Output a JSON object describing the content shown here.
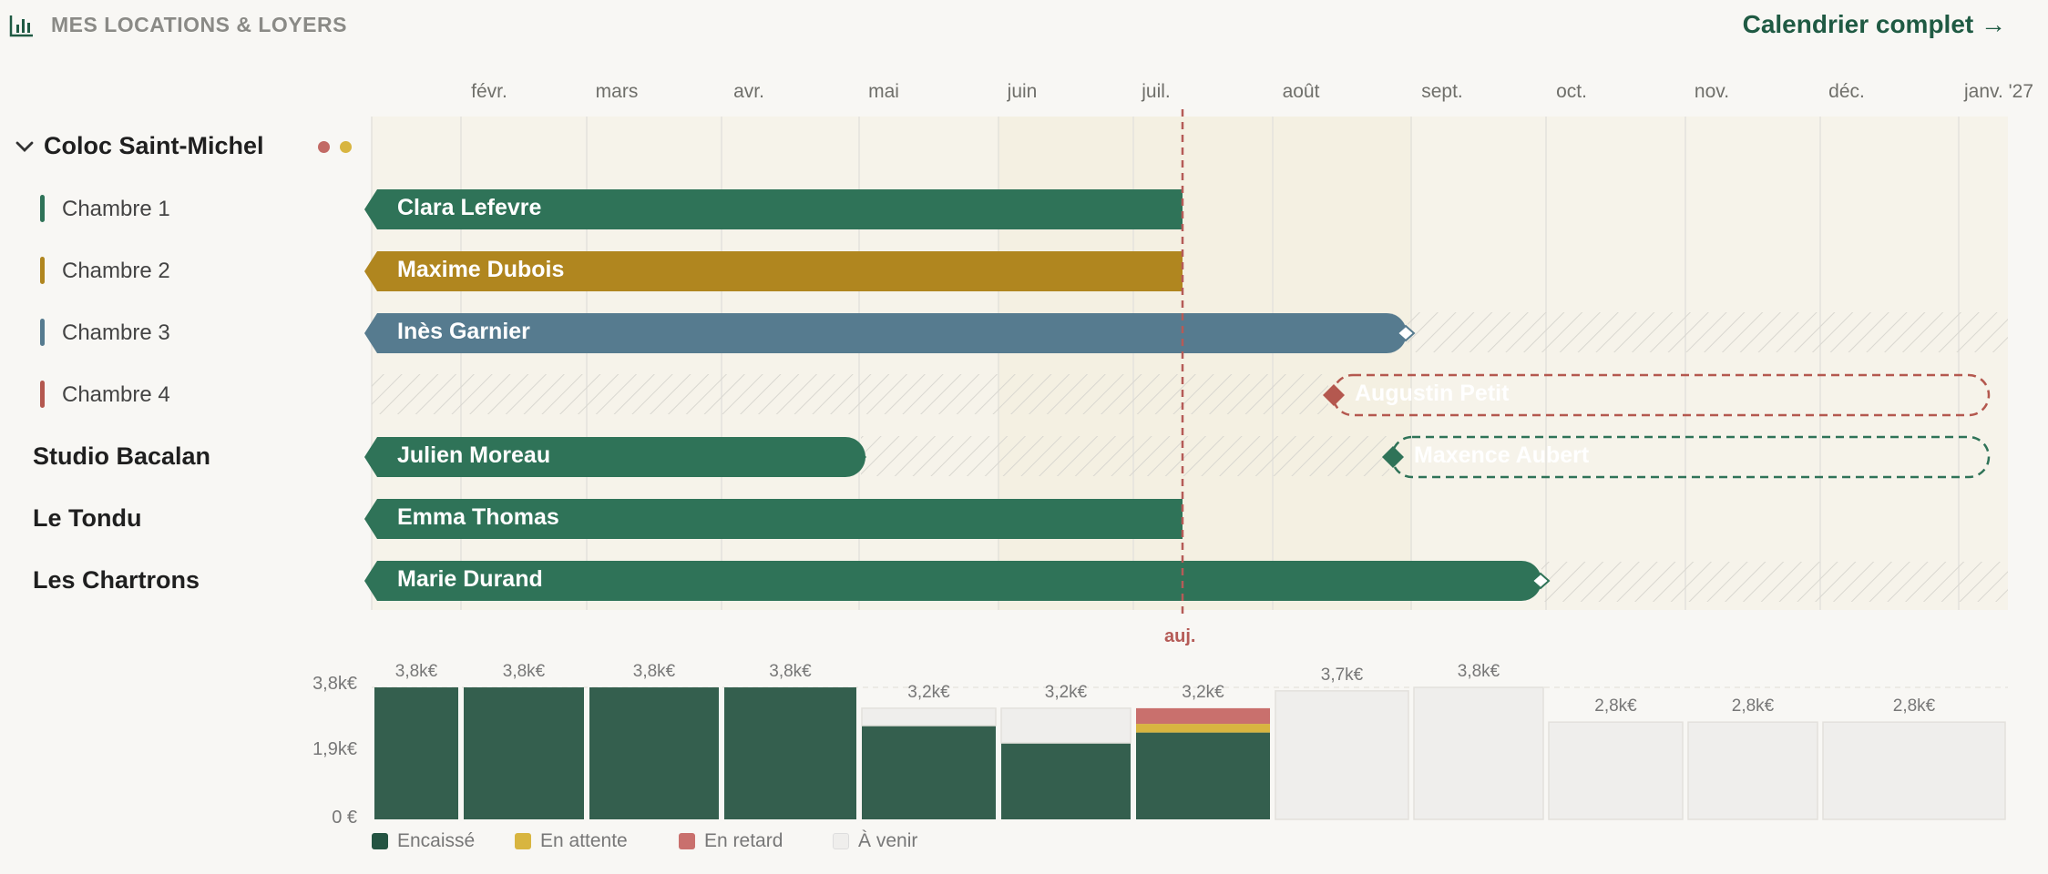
{
  "header": {
    "title": "MES LOCATIONS & LOYERS",
    "calendar_link": "Calendrier complet →"
  },
  "months": [
    "févr.",
    "mars",
    "avr.",
    "mai",
    "juin",
    "juil.",
    "août",
    "sept.",
    "oct.",
    "nov.",
    "déc.",
    "janv. '27"
  ],
  "rows": {
    "group_coloc": "Coloc Saint-Michel",
    "chambre1": "Chambre 1",
    "chambre2": "Chambre 2",
    "chambre3": "Chambre 3",
    "chambre4": "Chambre 4",
    "studio": "Studio Bacalan",
    "tondu": "Le Tondu",
    "chartrons": "Les Chartrons"
  },
  "tenants": {
    "clara": "Clara Lefevre",
    "maxime": "Maxime Dubois",
    "ines": "Inès Garnier",
    "augustin": "Augustin Petit",
    "julien": "Julien Moreau",
    "maxence": "Maxence Aubert",
    "emma": "Emma Thomas",
    "marie": "Marie Durand"
  },
  "today_label": "auj.",
  "colors": {
    "green": "#2f7358",
    "mustard": "#b0861f",
    "blue": "#567b8f",
    "red": "#b4584f",
    "dark_green": "#345f4e",
    "pending": "#d8b540",
    "late": "#c9706d",
    "upcoming": "#efeeec"
  },
  "chart_data": {
    "type": "bar",
    "categories": [
      "févr.",
      "mars",
      "avr.",
      "mai",
      "juin",
      "juil.",
      "août",
      "sept.",
      "oct.",
      "nov.",
      "déc.",
      "janv. '27"
    ],
    "series": [
      {
        "name": "Encaissé",
        "values": [
          3800,
          3800,
          3800,
          3800,
          2700,
          2200,
          2500,
          0,
          0,
          0,
          0,
          0
        ]
      },
      {
        "name": "En attente",
        "values": [
          0,
          0,
          0,
          0,
          0,
          0,
          250,
          0,
          0,
          0,
          0,
          0
        ]
      },
      {
        "name": "En retard",
        "values": [
          0,
          0,
          0,
          0,
          0,
          0,
          450,
          0,
          0,
          0,
          0,
          0
        ]
      },
      {
        "name": "À venir",
        "values": [
          0,
          0,
          0,
          0,
          500,
          1000,
          0,
          3700,
          3800,
          2800,
          2800,
          2800
        ]
      }
    ],
    "totals": [
      "3,8k€",
      "3,8k€",
      "3,8k€",
      "3,8k€",
      "3,2k€",
      "3,2k€",
      "3,2k€",
      "3,7k€",
      "3,8k€",
      "2,8k€",
      "2,8k€",
      "2,8k€"
    ],
    "yticks": [
      "3,8k€",
      "1,9k€",
      "0 €"
    ],
    "ylim": [
      0,
      3800
    ]
  },
  "legend": {
    "collected": "Encaissé",
    "pending": "En attente",
    "late": "En retard",
    "upcoming": "À venir"
  }
}
